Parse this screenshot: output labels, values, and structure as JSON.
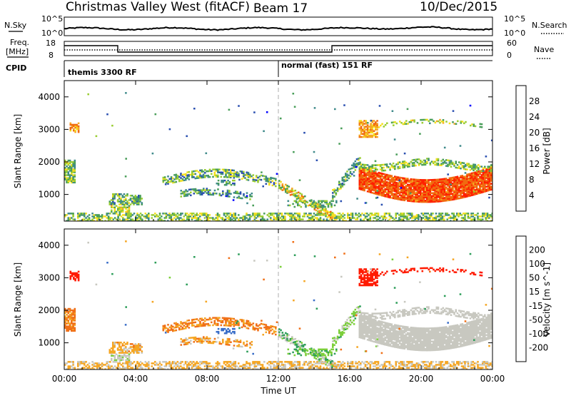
{
  "header": {
    "station": "Christmas Valley West (fitACF)",
    "beam": "Beam 17",
    "date": "10/Dec/2015"
  },
  "strip": {
    "nsky_label": "N.Sky",
    "nsky_top": "10^5",
    "nsky_bottom": "10^0",
    "nsky_right_top": "10^5",
    "nsky_right_bottom": "10^0",
    "nsearch_label": "N.Search",
    "freq_label_1": "Freq.",
    "freq_label_2": "[MHz]",
    "freq_top": "18",
    "freq_bottom": "8",
    "nave_top": "60",
    "nave_bottom": "0",
    "nave_label": "Nave",
    "cpid_label": "CPID",
    "cpid_1": "themis 3300 RF",
    "cpid_2": "normal (fast) 151 RF"
  },
  "chart_data": [
    {
      "type": "heatmap",
      "title": "",
      "xlabel": "Time UT",
      "ylabel": "Slant Range [km]",
      "xlim": [
        0,
        24
      ],
      "ylim": [
        180,
        4500
      ],
      "x_ticks": [
        "00:00",
        "04:00",
        "08:00",
        "12:00",
        "16:00",
        "20:00",
        "00:00"
      ],
      "y_ticks": [
        "1000",
        "2000",
        "3000",
        "4000"
      ],
      "colorbar": {
        "label": "Power [dB]",
        "ticks": [
          "4",
          "8",
          "12",
          "16",
          "20",
          "24",
          "28"
        ],
        "range": [
          0,
          30
        ],
        "colors": [
          "#0000ff",
          "#2a4fb0",
          "#3f8a8a",
          "#4a9e5a",
          "#9acd32",
          "#f5e020",
          "#f5a623",
          "#f06a10",
          "#ff2000"
        ]
      },
      "features": [
        {
          "name": "ionospheric scatter",
          "time_range": [
            16.5,
            24.0
          ],
          "range_km": [
            900,
            2000
          ],
          "value": 28
        },
        {
          "name": "ground scatter",
          "time_range": [
            0.0,
            24.0
          ],
          "range_km": [
            200,
            450
          ],
          "value": 20
        }
      ]
    },
    {
      "type": "heatmap",
      "title": "",
      "xlabel": "Time UT",
      "ylabel": "Slant Range [km]",
      "xlim": [
        0,
        24
      ],
      "ylim": [
        180,
        4500
      ],
      "x_ticks": [
        "00:00",
        "04:00",
        "08:00",
        "12:00",
        "16:00",
        "20:00",
        "00:00"
      ],
      "y_ticks": [
        "1000",
        "2000",
        "3000",
        "4000"
      ],
      "colorbar": {
        "label": "Velocity [m s^-1]",
        "ticks": [
          "200",
          "100",
          "50",
          "15",
          "-15",
          "-50",
          "-100",
          "-200"
        ],
        "range": [
          -250,
          250
        ],
        "colors": [
          "#2040c0",
          "#3a6ec8",
          "#2e9e5a",
          "#7ccf3a",
          "#c8c8c0",
          "#f5a623",
          "#f07018",
          "#ff1a00"
        ]
      },
      "features": [
        {
          "name": "low-velocity scatter",
          "time_range": [
            16.5,
            24.0
          ],
          "range_km": [
            1100,
            2300
          ],
          "value": 0
        },
        {
          "name": "ground scatter",
          "time_range": [
            0.0,
            24.0
          ],
          "range_km": [
            200,
            400
          ],
          "value": -20
        }
      ]
    }
  ],
  "footer": {
    "xlabel": "Time UT"
  }
}
